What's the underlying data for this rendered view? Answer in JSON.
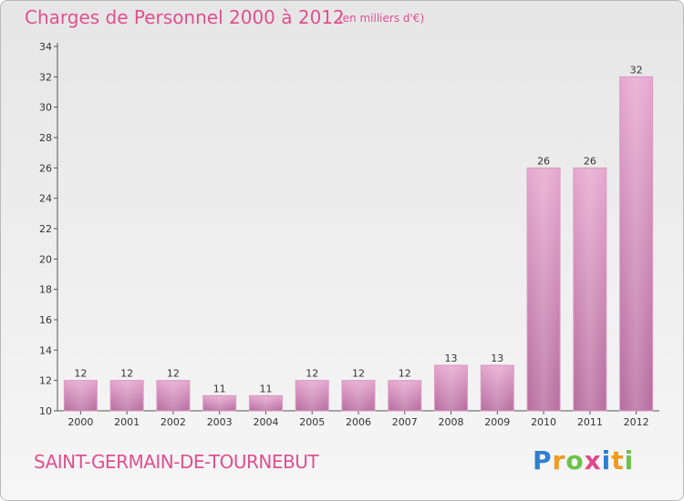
{
  "chart_data": {
    "type": "bar",
    "title": "Charges de Personnel 2000 à 2012",
    "subtitle": "(en milliers d'€)",
    "categories": [
      "2000",
      "2001",
      "2002",
      "2003",
      "2004",
      "2005",
      "2006",
      "2007",
      "2008",
      "2009",
      "2010",
      "2011",
      "2012"
    ],
    "values": [
      12,
      12,
      12,
      11,
      11,
      12,
      12,
      12,
      13,
      13,
      26,
      26,
      32
    ],
    "ylim": [
      10,
      34
    ],
    "yticks": [
      10,
      12,
      14,
      16,
      18,
      20,
      22,
      24,
      26,
      28,
      30,
      32,
      34
    ],
    "xlabel": "",
    "ylabel": "",
    "grid": false,
    "colors": {
      "bar_top": "#e6a8cf",
      "bar_bottom": "#b86fa0",
      "accent": "#e0508e"
    }
  },
  "footer": {
    "commune": "SAINT-GERMAIN-DE-TOURNEBUT",
    "logo": [
      "P",
      "r",
      "o",
      "x",
      "i",
      "t",
      "i"
    ]
  }
}
